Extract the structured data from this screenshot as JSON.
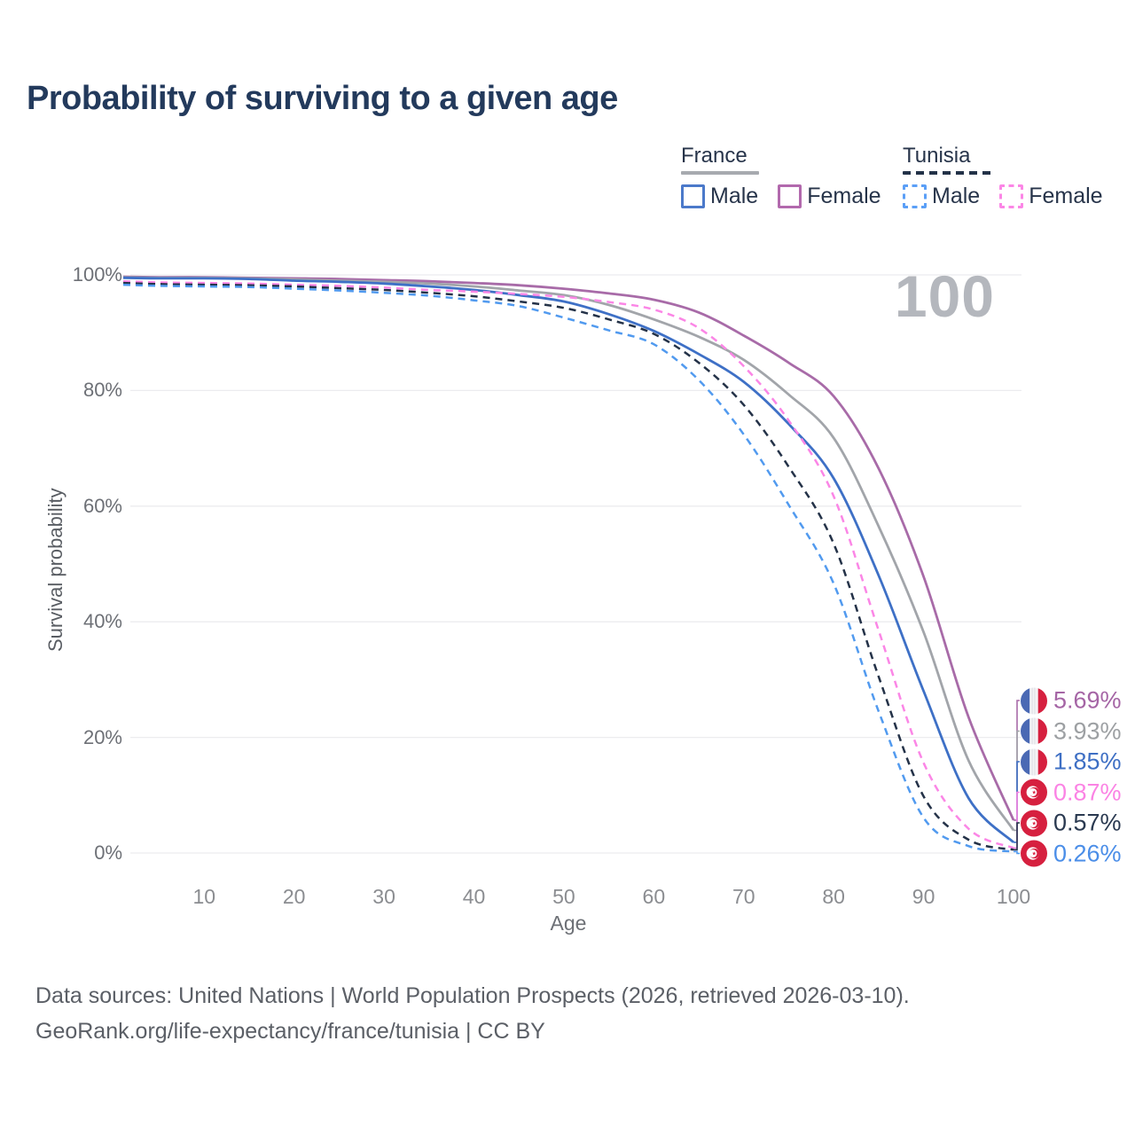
{
  "title": "Probability of surviving to a given age",
  "watermark_age": "100",
  "legend": {
    "groups": [
      {
        "country": "France",
        "style": "solid",
        "items": [
          {
            "label": "Male",
            "color": "#4b79ca"
          },
          {
            "label": "Female",
            "color": "#b269ad"
          }
        ]
      },
      {
        "country": "Tunisia",
        "style": "dashed",
        "items": [
          {
            "label": "Male",
            "color": "#5b9ff7"
          },
          {
            "label": "Female",
            "color": "#fb86e6"
          }
        ]
      }
    ]
  },
  "chart_data": {
    "type": "line",
    "title": "Probability of surviving to a given age",
    "xlabel": "Age",
    "ylabel": "Survival probability",
    "xlim": [
      1,
      100
    ],
    "ylim": [
      0,
      100
    ],
    "grid": "horizontal",
    "annotation": "100",
    "x_ages": [
      1,
      5,
      10,
      15,
      20,
      25,
      30,
      35,
      40,
      45,
      50,
      55,
      60,
      65,
      70,
      75,
      80,
      85,
      90,
      95,
      100
    ],
    "xticks": [
      10,
      20,
      30,
      40,
      50,
      60,
      70,
      80,
      90,
      100
    ],
    "yticks": [
      {
        "value": 0,
        "label": "0%"
      },
      {
        "value": 20,
        "label": "20%"
      },
      {
        "value": 40,
        "label": "40%"
      },
      {
        "value": 60,
        "label": "60%"
      },
      {
        "value": 80,
        "label": "80%"
      },
      {
        "value": 100,
        "label": "100%"
      }
    ],
    "series": [
      {
        "name": "France Female",
        "country": "France",
        "sex": "Female",
        "style": "solid",
        "color": "#a86ba8",
        "label_color": "#a565a5",
        "end_label": "5.69%",
        "flag": "france",
        "values": [
          99.7,
          99.6,
          99.6,
          99.5,
          99.4,
          99.3,
          99.1,
          98.9,
          98.6,
          98.2,
          97.6,
          96.8,
          95.7,
          93.5,
          89.5,
          84.8,
          79.0,
          66.5,
          47.8,
          23.5,
          5.69
        ]
      },
      {
        "name": "France Total",
        "country": "France",
        "sex": "Both",
        "style": "solid",
        "color": "#a2a5aa",
        "label_color": "#9da0a3",
        "end_label": "3.93%",
        "flag": "france",
        "values": [
          99.6,
          99.5,
          99.5,
          99.4,
          99.2,
          99.0,
          98.8,
          98.5,
          98.0,
          97.3,
          96.5,
          94.8,
          92.3,
          89.3,
          85.3,
          79.3,
          71.8,
          56.5,
          38.2,
          16.0,
          3.93
        ]
      },
      {
        "name": "France Male",
        "country": "France",
        "sex": "Male",
        "style": "solid",
        "color": "#3e70c6",
        "label_color": "#3e6fc4",
        "end_label": "1.85%",
        "flag": "france",
        "values": [
          99.5,
          99.4,
          99.4,
          99.3,
          99.0,
          98.8,
          98.5,
          98.0,
          97.4,
          96.5,
          95.4,
          93.2,
          90.3,
          86.3,
          81.5,
          74.2,
          64.8,
          48.0,
          28.0,
          9.5,
          1.85
        ]
      },
      {
        "name": "Tunisia Female",
        "country": "Tunisia",
        "sex": "Female",
        "style": "dashed",
        "color": "#fb86e6",
        "label_color": "#fb83e4",
        "end_label": "0.87%",
        "flag": "tunisia",
        "values": [
          98.9,
          98.7,
          98.6,
          98.5,
          98.3,
          98.1,
          97.8,
          97.4,
          97.1,
          96.7,
          96.2,
          95.3,
          94.0,
          90.8,
          84.2,
          74.8,
          61.7,
          38.5,
          15.6,
          4.2,
          0.87
        ]
      },
      {
        "name": "Tunisia Total",
        "country": "Tunisia",
        "sex": "Both",
        "style": "dashed",
        "color": "#243248",
        "label_color": "#2a3950",
        "end_label": "0.57%",
        "flag": "tunisia",
        "values": [
          98.6,
          98.4,
          98.3,
          98.2,
          98.0,
          97.7,
          97.4,
          96.9,
          96.3,
          95.4,
          94.3,
          92.3,
          89.8,
          84.8,
          77.5,
          66.8,
          53.5,
          30.5,
          9.8,
          2.3,
          0.57
        ]
      },
      {
        "name": "Tunisia Male",
        "country": "Tunisia",
        "sex": "Male",
        "style": "dashed",
        "color": "#519aef",
        "label_color": "#4b8ee8",
        "end_label": "0.26%",
        "flag": "tunisia",
        "values": [
          98.3,
          98.1,
          98.0,
          97.9,
          97.6,
          97.3,
          96.9,
          96.4,
          95.6,
          94.6,
          92.6,
          90.4,
          88.0,
          81.8,
          72.4,
          60.2,
          46.6,
          24.5,
          6.1,
          1.2,
          0.26
        ]
      }
    ]
  },
  "footer": {
    "line1": "Data sources: United Nations | World Population Prospects (2026, retrieved 2026-03-10).",
    "line2": "GeoRank.org/life-expectancy/france/tunisia | CC BY"
  }
}
